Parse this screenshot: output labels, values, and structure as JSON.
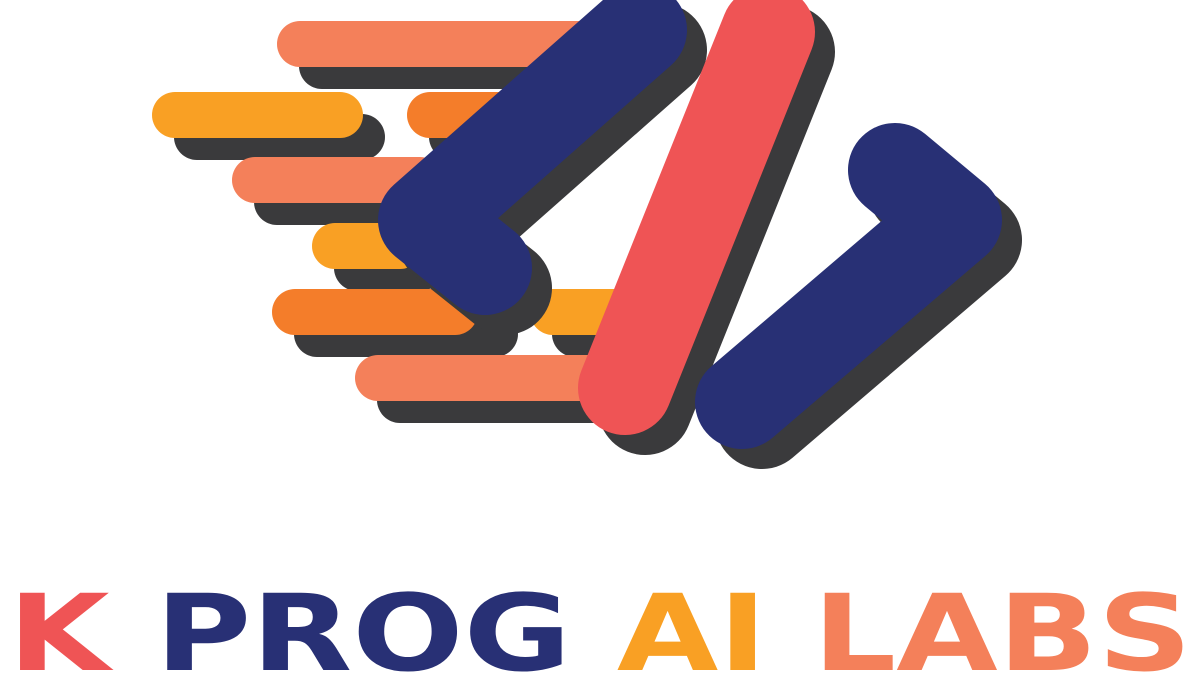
{
  "brand": {
    "name_parts": [
      {
        "text": "K",
        "color": "#ef5455"
      },
      {
        "text": "PROG",
        "color": "#283075"
      },
      {
        "text": "AI",
        "color": "#f9a024"
      },
      {
        "text": "LABS",
        "color": "#f4805a"
      }
    ]
  },
  "logo": {
    "icon": "code-brackets-icon",
    "colors": {
      "navy": "#283075",
      "red": "#ef5455",
      "salmon": "#f4805a",
      "amber": "#f9a024",
      "orange": "#f47d2a",
      "shadow": "#3a3a3c"
    }
  }
}
